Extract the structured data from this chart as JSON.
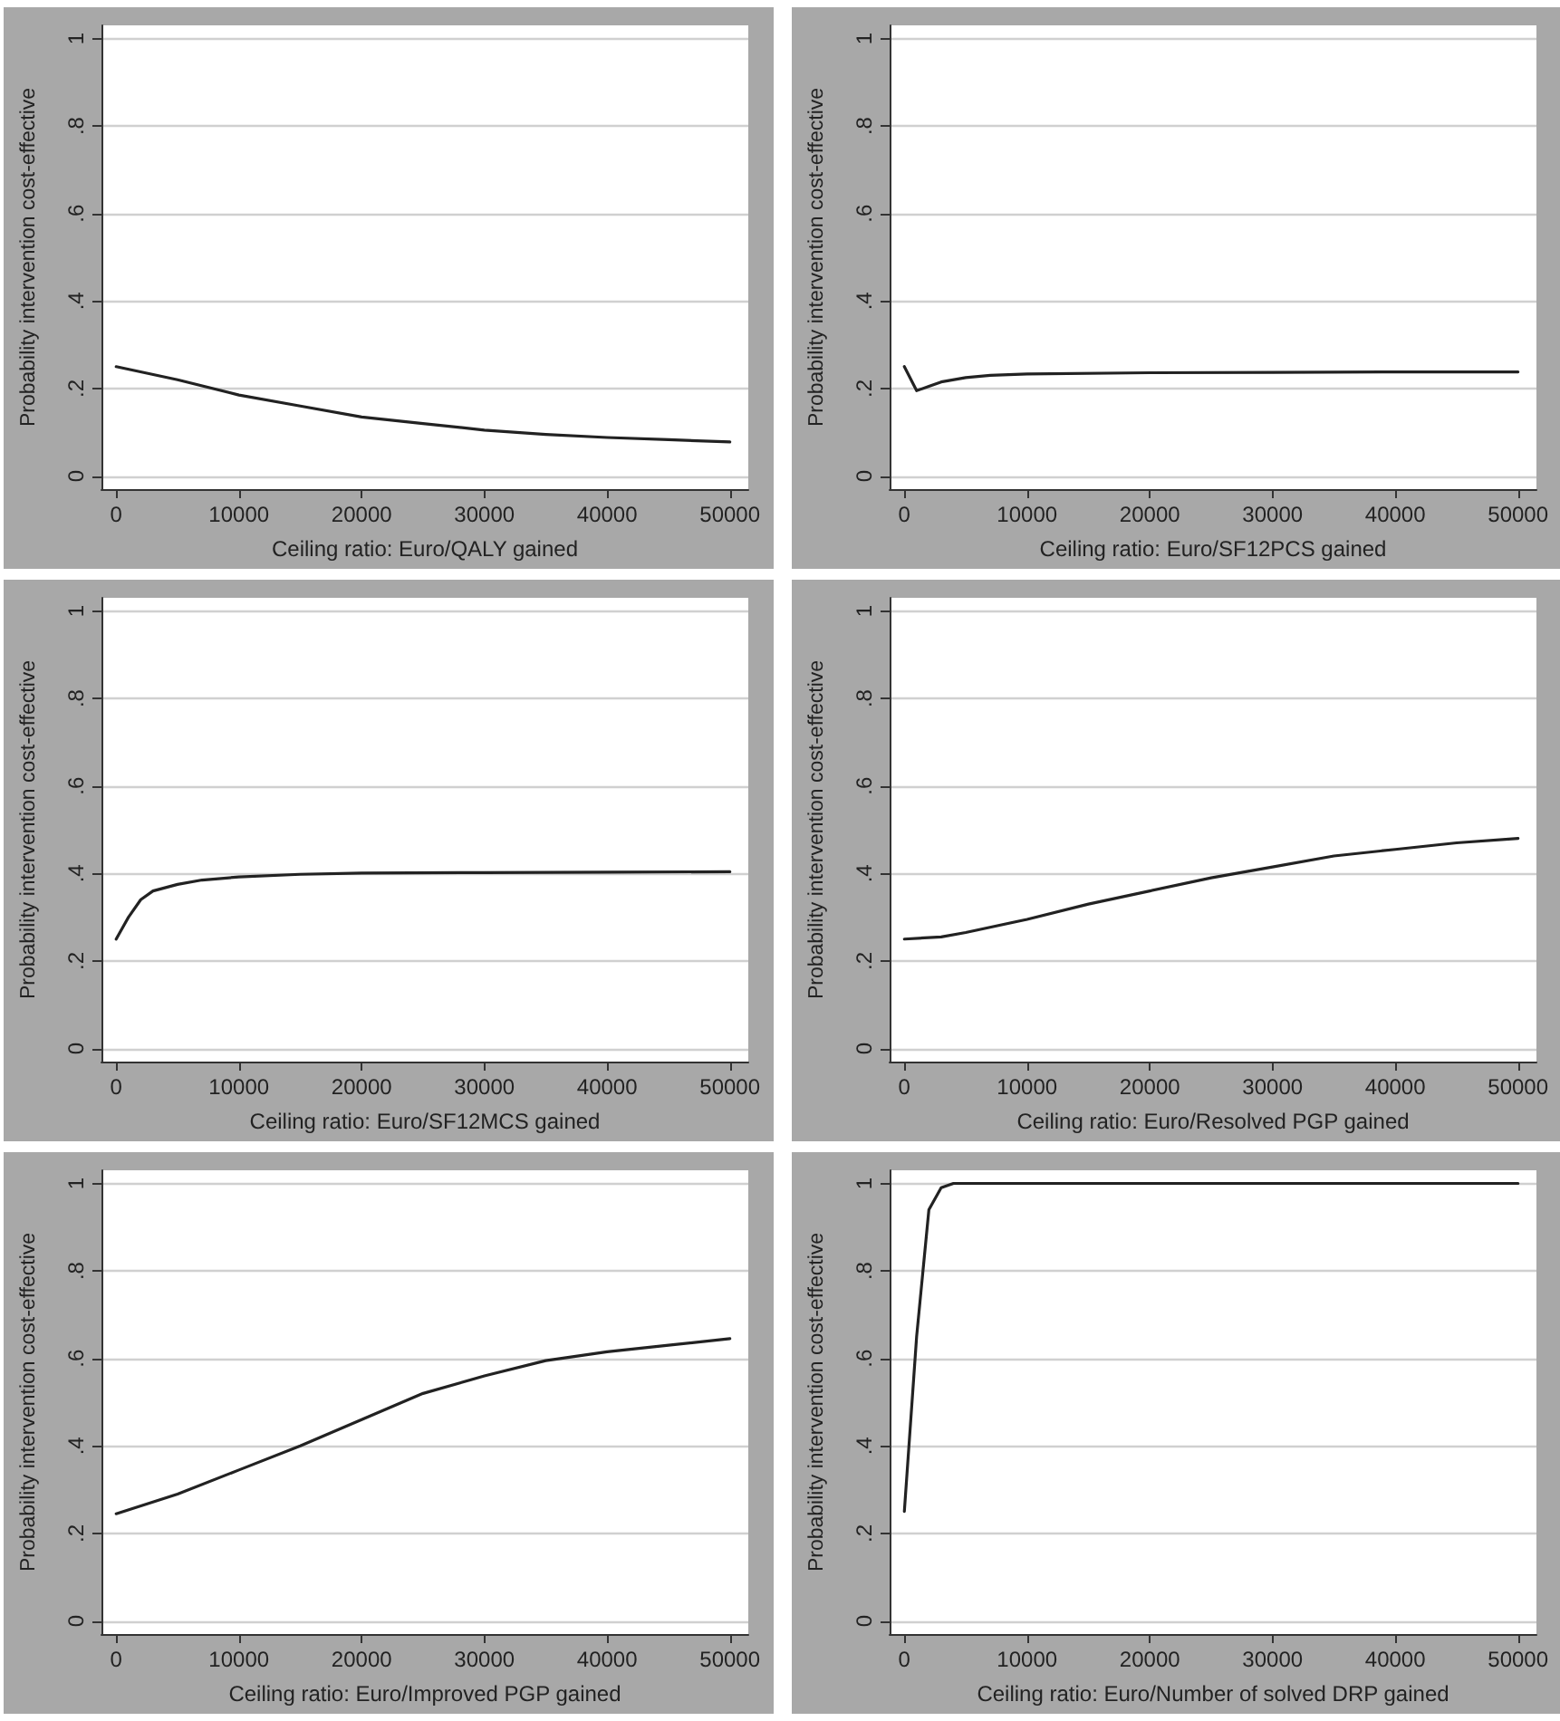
{
  "chart_data": [
    {
      "type": "line",
      "xlabel": "Ceiling ratio: Euro/QALY gained",
      "ylabel": "Probability intervention cost-effective",
      "x": [
        0,
        5000,
        10000,
        15000,
        20000,
        25000,
        30000,
        35000,
        40000,
        45000,
        50000
      ],
      "series": [
        {
          "color": "#222222",
          "values": [
            0.25,
            0.22,
            0.185,
            0.16,
            0.135,
            0.12,
            0.105,
            0.095,
            0.088,
            0.083,
            0.078
          ]
        }
      ],
      "xlim": [
        -1200,
        51500
      ],
      "ylim": [
        -0.03,
        1.03
      ],
      "xticks": [
        0,
        10000,
        20000,
        30000,
        40000,
        50000
      ],
      "yticks": [
        {
          "value": 0,
          "label": "0"
        },
        {
          "value": 0.2,
          "label": ".2"
        },
        {
          "value": 0.4,
          "label": ".4"
        },
        {
          "value": 0.6,
          "label": ".6"
        },
        {
          "value": 0.8,
          "label": ".8"
        },
        {
          "value": 1,
          "label": "1"
        }
      ],
      "grid": "y",
      "marker": "none",
      "line_style": "solid"
    },
    {
      "type": "line",
      "xlabel": "Ceiling ratio: Euro/SF12PCS gained",
      "ylabel": "Probability intervention cost-effective",
      "x": [
        0,
        1000,
        2000,
        3000,
        5000,
        7000,
        10000,
        20000,
        30000,
        40000,
        50000
      ],
      "series": [
        {
          "color": "#222222",
          "values": [
            0.25,
            0.195,
            0.205,
            0.215,
            0.225,
            0.23,
            0.233,
            0.236,
            0.237,
            0.238,
            0.238
          ]
        }
      ],
      "xlim": [
        -1200,
        51500
      ],
      "ylim": [
        -0.03,
        1.03
      ],
      "xticks": [
        0,
        10000,
        20000,
        30000,
        40000,
        50000
      ],
      "yticks": [
        {
          "value": 0,
          "label": "0"
        },
        {
          "value": 0.2,
          "label": ".2"
        },
        {
          "value": 0.4,
          "label": ".4"
        },
        {
          "value": 0.6,
          "label": ".6"
        },
        {
          "value": 0.8,
          "label": ".8"
        },
        {
          "value": 1,
          "label": "1"
        }
      ],
      "grid": "y",
      "marker": "none",
      "line_style": "solid"
    },
    {
      "type": "line",
      "xlabel": "Ceiling ratio: Euro/SF12MCS gained",
      "ylabel": "Probability intervention cost-effective",
      "x": [
        0,
        1000,
        2000,
        3000,
        5000,
        7000,
        10000,
        15000,
        20000,
        30000,
        40000,
        50000
      ],
      "series": [
        {
          "color": "#222222",
          "values": [
            0.25,
            0.3,
            0.34,
            0.36,
            0.375,
            0.385,
            0.392,
            0.398,
            0.401,
            0.402,
            0.403,
            0.404
          ]
        }
      ],
      "xlim": [
        -1200,
        51500
      ],
      "ylim": [
        -0.03,
        1.03
      ],
      "xticks": [
        0,
        10000,
        20000,
        30000,
        40000,
        50000
      ],
      "yticks": [
        {
          "value": 0,
          "label": "0"
        },
        {
          "value": 0.2,
          "label": ".2"
        },
        {
          "value": 0.4,
          "label": ".4"
        },
        {
          "value": 0.6,
          "label": ".6"
        },
        {
          "value": 0.8,
          "label": ".8"
        },
        {
          "value": 1,
          "label": "1"
        }
      ],
      "grid": "y",
      "marker": "none",
      "line_style": "solid"
    },
    {
      "type": "line",
      "xlabel": "Ceiling ratio: Euro/Resolved PGP gained",
      "ylabel": "Probability intervention cost-effective",
      "x": [
        0,
        3000,
        5000,
        10000,
        15000,
        20000,
        25000,
        30000,
        35000,
        40000,
        45000,
        50000
      ],
      "series": [
        {
          "color": "#222222",
          "values": [
            0.25,
            0.255,
            0.265,
            0.295,
            0.33,
            0.36,
            0.39,
            0.415,
            0.44,
            0.455,
            0.47,
            0.48
          ]
        }
      ],
      "xlim": [
        -1200,
        51500
      ],
      "ylim": [
        -0.03,
        1.03
      ],
      "xticks": [
        0,
        10000,
        20000,
        30000,
        40000,
        50000
      ],
      "yticks": [
        {
          "value": 0,
          "label": "0"
        },
        {
          "value": 0.2,
          "label": ".2"
        },
        {
          "value": 0.4,
          "label": ".4"
        },
        {
          "value": 0.6,
          "label": ".6"
        },
        {
          "value": 0.8,
          "label": ".8"
        },
        {
          "value": 1,
          "label": "1"
        }
      ],
      "grid": "y",
      "marker": "none",
      "line_style": "solid"
    },
    {
      "type": "line",
      "xlabel": "Ceiling ratio: Euro/Improved PGP gained",
      "ylabel": "Probability intervention cost-effective",
      "x": [
        0,
        5000,
        10000,
        15000,
        20000,
        25000,
        30000,
        35000,
        40000,
        45000,
        50000
      ],
      "series": [
        {
          "color": "#222222",
          "values": [
            0.245,
            0.29,
            0.345,
            0.4,
            0.46,
            0.52,
            0.56,
            0.595,
            0.615,
            0.63,
            0.645
          ]
        }
      ],
      "xlim": [
        -1200,
        51500
      ],
      "ylim": [
        -0.03,
        1.03
      ],
      "xticks": [
        0,
        10000,
        20000,
        30000,
        40000,
        50000
      ],
      "yticks": [
        {
          "value": 0,
          "label": "0"
        },
        {
          "value": 0.2,
          "label": ".2"
        },
        {
          "value": 0.4,
          "label": ".4"
        },
        {
          "value": 0.6,
          "label": ".6"
        },
        {
          "value": 0.8,
          "label": ".8"
        },
        {
          "value": 1,
          "label": "1"
        }
      ],
      "grid": "y",
      "marker": "none",
      "line_style": "solid"
    },
    {
      "type": "line",
      "xlabel": "Ceiling ratio: Euro/Number of solved DRP gained",
      "ylabel": "Probability intervention cost-effective",
      "x": [
        0,
        1000,
        2000,
        3000,
        4000,
        50000
      ],
      "series": [
        {
          "color": "#222222",
          "values": [
            0.25,
            0.65,
            0.94,
            0.99,
            1,
            1
          ]
        }
      ],
      "xlim": [
        -1200,
        51500
      ],
      "ylim": [
        -0.03,
        1.03
      ],
      "xticks": [
        0,
        10000,
        20000,
        30000,
        40000,
        50000
      ],
      "yticks": [
        {
          "value": 0,
          "label": "0"
        },
        {
          "value": 0.2,
          "label": ".2"
        },
        {
          "value": 0.4,
          "label": ".4"
        },
        {
          "value": 0.6,
          "label": ".6"
        },
        {
          "value": 0.8,
          "label": ".8"
        },
        {
          "value": 1,
          "label": "1"
        }
      ],
      "grid": "y",
      "marker": "none",
      "line_style": "solid"
    }
  ]
}
